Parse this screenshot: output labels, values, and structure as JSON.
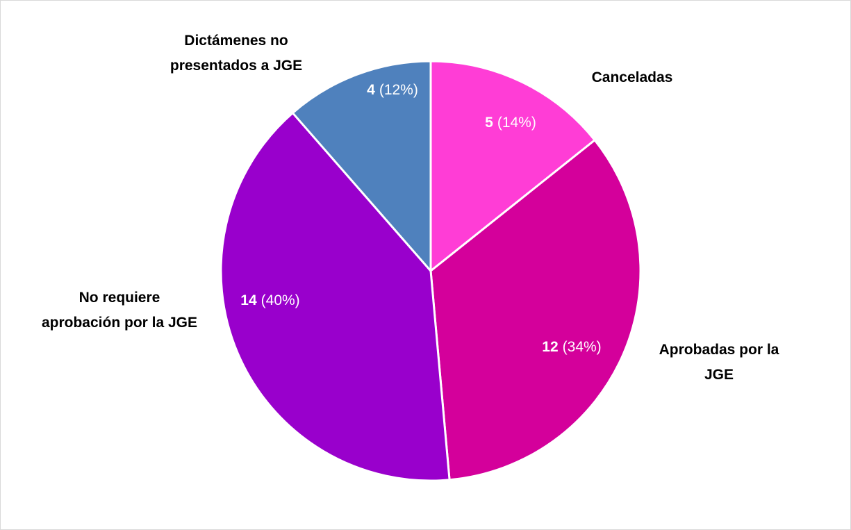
{
  "chart_data": {
    "type": "pie",
    "categories": [
      "Canceladas",
      "Aprobadas por la JGE",
      "No requiere aprobación por la JGE",
      "Dictámenes no presentados a JGE"
    ],
    "values": [
      5,
      12,
      14,
      4
    ],
    "percent_labels": [
      "(14%)",
      "(34%)",
      "(40%)",
      "(12%)"
    ],
    "colors": [
      "#ff3dd6",
      "#d4009b",
      "#9900cc",
      "#4f81bd"
    ]
  }
}
